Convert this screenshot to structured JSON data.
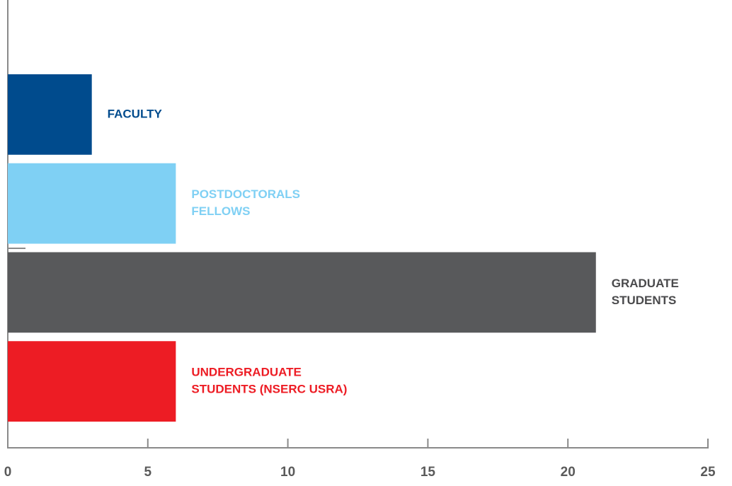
{
  "chart_data": {
    "type": "bar",
    "orientation": "horizontal",
    "categories": [
      [
        "FACULTY"
      ],
      [
        "POSTDOCTORALS",
        "FELLOWS"
      ],
      [
        "GRADUATE",
        "STUDENTS"
      ],
      [
        "UNDERGRADUATE",
        "STUDENTS (NSERC USRA)"
      ]
    ],
    "values": [
      3,
      6,
      21,
      6
    ],
    "colors": [
      "#004b8d",
      "#7fd0f4",
      "#58595b",
      "#ed1c24"
    ],
    "xlim": [
      0,
      25
    ],
    "xticks": [
      0,
      5,
      10,
      15,
      20,
      25
    ],
    "grid": false
  }
}
